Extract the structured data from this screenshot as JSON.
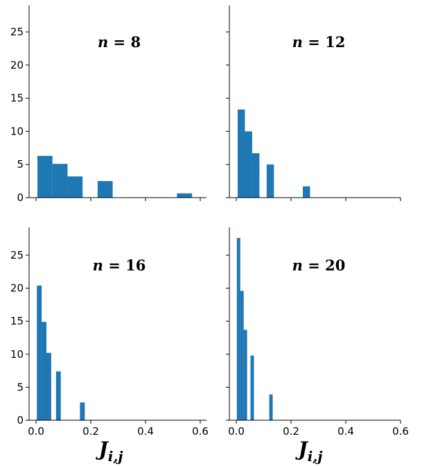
{
  "chart_data": [
    {
      "type": "bar",
      "title": "n = 8",
      "title_parts": {
        "var": "n",
        "eq": " = ",
        "val": "8"
      },
      "bins": [
        {
          "x0": 0.005,
          "x1": 0.06,
          "value": 6.3
        },
        {
          "x0": 0.06,
          "x1": 0.115,
          "value": 5.1
        },
        {
          "x0": 0.115,
          "x1": 0.17,
          "value": 3.2
        },
        {
          "x0": 0.225,
          "x1": 0.28,
          "value": 2.5
        },
        {
          "x0": 0.515,
          "x1": 0.57,
          "value": 0.65
        }
      ],
      "xlim": [
        -0.02,
        0.62
      ],
      "ylim": [
        0,
        29
      ],
      "yticks": [
        0,
        5,
        10,
        15,
        20,
        25
      ],
      "yticklabels": [
        "0",
        "5",
        "10",
        "15",
        "20",
        "25"
      ],
      "xticks": [
        0.0,
        0.2,
        0.4,
        0.6
      ],
      "xticklabels": [],
      "xlabel": ""
    },
    {
      "type": "bar",
      "title": "n = 12",
      "title_parts": {
        "var": "n",
        "eq": " = ",
        "val": "12"
      },
      "bins": [
        {
          "x0": 0.005,
          "x1": 0.0315,
          "value": 13.3
        },
        {
          "x0": 0.0315,
          "x1": 0.058,
          "value": 10.0
        },
        {
          "x0": 0.058,
          "x1": 0.0845,
          "value": 6.7
        },
        {
          "x0": 0.111,
          "x1": 0.1375,
          "value": 5.0
        },
        {
          "x0": 0.243,
          "x1": 0.2695,
          "value": 1.7
        }
      ],
      "xlim": [
        -0.02,
        0.62
      ],
      "ylim": [
        0,
        29
      ],
      "yticks": [
        0,
        5,
        10,
        15,
        20,
        25
      ],
      "yticklabels": [],
      "xticks": [
        0.0,
        0.2,
        0.4,
        0.6
      ],
      "xticklabels": [],
      "xlabel": ""
    },
    {
      "type": "bar",
      "title": "n = 16",
      "title_parts": {
        "var": "n",
        "eq": " = ",
        "val": "16"
      },
      "bins": [
        {
          "x0": 0.003,
          "x1": 0.0205,
          "value": 20.4
        },
        {
          "x0": 0.0205,
          "x1": 0.038,
          "value": 14.9
        },
        {
          "x0": 0.038,
          "x1": 0.0555,
          "value": 10.2
        },
        {
          "x0": 0.073,
          "x1": 0.0905,
          "value": 7.4
        },
        {
          "x0": 0.1605,
          "x1": 0.178,
          "value": 2.7
        }
      ],
      "xlim": [
        -0.02,
        0.62
      ],
      "ylim": [
        0,
        29
      ],
      "yticks": [
        0,
        5,
        10,
        15,
        20,
        25
      ],
      "yticklabels": [
        "0",
        "5",
        "10",
        "15",
        "20",
        "25"
      ],
      "xticks": [
        0.0,
        0.2,
        0.4,
        0.6
      ],
      "xticklabels": [
        "0.0",
        "0.2",
        "0.4",
        "0.6"
      ],
      "xlabel": "J",
      "xlabel_sub": "i,j"
    },
    {
      "type": "bar",
      "title": "n = 20",
      "title_parts": {
        "var": "n",
        "eq": " = ",
        "val": "20"
      },
      "bins": [
        {
          "x0": 0.002,
          "x1": 0.0145,
          "value": 27.6
        },
        {
          "x0": 0.0145,
          "x1": 0.027,
          "value": 19.6
        },
        {
          "x0": 0.027,
          "x1": 0.0395,
          "value": 13.7
        },
        {
          "x0": 0.052,
          "x1": 0.0645,
          "value": 9.8
        },
        {
          "x0": 0.1205,
          "x1": 0.133,
          "value": 3.9
        }
      ],
      "xlim": [
        -0.02,
        0.62
      ],
      "ylim": [
        0,
        29
      ],
      "yticks": [
        0,
        5,
        10,
        15,
        20,
        25
      ],
      "yticklabels": [],
      "xticks": [
        0.0,
        0.2,
        0.4,
        0.6
      ],
      "xticklabels": [
        "0.0",
        "0.2",
        "0.4",
        "0.6"
      ],
      "xlabel": "J",
      "xlabel_sub": "i,j"
    }
  ],
  "colors": {
    "bar": "#1f77b4",
    "axis": "#000000"
  }
}
